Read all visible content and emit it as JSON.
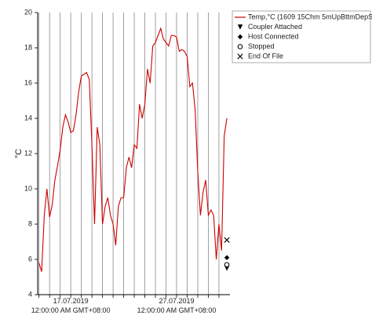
{
  "chart_data": {
    "type": "line",
    "ylabel": "°C",
    "ylim": [
      4,
      20
    ],
    "yticks": [
      4,
      6,
      8,
      10,
      12,
      14,
      16,
      18,
      20
    ],
    "xlim": [
      "2019-07-13T21:00",
      "2019-08-01T01:00"
    ],
    "xticks": [
      "2019-07-14T00:00",
      "2019-07-15T00:00",
      "2019-07-16T00:00",
      {
        "value": "2019-07-17T00:00",
        "label": "17.07.2019\n12:00:00 AM GMT+08:00"
      },
      "2019-07-18T00:00",
      "2019-07-19T00:00",
      "2019-07-20T00:00",
      "2019-07-21T00:00",
      "2019-07-22T00:00",
      "2019-07-23T00:00",
      "2019-07-24T00:00",
      "2019-07-25T00:00",
      "2019-07-26T00:00",
      {
        "value": "2019-07-27T00:00",
        "label": "27.07.2019\n12:00:00 AM GMT+08:00"
      },
      "2019-07-28T00:00",
      "2019-07-29T00:00",
      "2019-07-30T00:00",
      "2019-07-31T00:00"
    ],
    "grid": true,
    "legend": "top-right",
    "series": [
      {
        "name": "Temp,°C (1609 15Chm 5mUpBttmDepSt)",
        "color": "#cc0000",
        "marker": "line",
        "x": [
          "2019-07-14T00:00",
          "2019-07-14T06:00",
          "2019-07-14T12:00",
          "2019-07-14T18:00",
          "2019-07-15T00:00",
          "2019-07-15T06:00",
          "2019-07-15T12:00",
          "2019-07-15T18:00",
          "2019-07-16T00:00",
          "2019-07-16T06:00",
          "2019-07-16T12:00",
          "2019-07-16T18:00",
          "2019-07-17T00:00",
          "2019-07-17T06:00",
          "2019-07-17T12:00",
          "2019-07-17T18:00",
          "2019-07-18T00:00",
          "2019-07-18T06:00",
          "2019-07-18T12:00",
          "2019-07-18T18:00",
          "2019-07-19T00:00",
          "2019-07-19T06:00",
          "2019-07-19T12:00",
          "2019-07-19T18:00",
          "2019-07-20T00:00",
          "2019-07-20T06:00",
          "2019-07-20T12:00",
          "2019-07-20T18:00",
          "2019-07-21T00:00",
          "2019-07-21T06:00",
          "2019-07-21T12:00",
          "2019-07-21T18:00",
          "2019-07-22T00:00",
          "2019-07-22T06:00",
          "2019-07-22T12:00",
          "2019-07-22T18:00",
          "2019-07-23T00:00",
          "2019-07-23T06:00",
          "2019-07-23T12:00",
          "2019-07-23T18:00",
          "2019-07-24T00:00",
          "2019-07-24T06:00",
          "2019-07-24T12:00",
          "2019-07-24T18:00",
          "2019-07-25T00:00",
          "2019-07-25T06:00",
          "2019-07-25T12:00",
          "2019-07-25T18:00",
          "2019-07-26T00:00",
          "2019-07-26T06:00",
          "2019-07-26T12:00",
          "2019-07-26T18:00",
          "2019-07-27T00:00",
          "2019-07-27T06:00",
          "2019-07-27T12:00",
          "2019-07-27T18:00",
          "2019-07-28T00:00",
          "2019-07-28T06:00",
          "2019-07-28T12:00",
          "2019-07-28T18:00",
          "2019-07-29T00:00",
          "2019-07-29T06:00",
          "2019-07-29T12:00",
          "2019-07-29T18:00",
          "2019-07-30T00:00",
          "2019-07-30T06:00",
          "2019-07-30T12:00",
          "2019-07-30T18:00",
          "2019-07-31T00:00",
          "2019-07-31T06:00",
          "2019-07-31T12:00",
          "2019-07-31T18:00"
        ],
        "values": [
          5.8,
          5.3,
          8.5,
          10,
          8.4,
          9.1,
          10.5,
          11.3,
          12.2,
          13.5,
          14.2,
          13.8,
          13.2,
          13.3,
          14.2,
          15.5,
          16.4,
          16.5,
          16.6,
          16.2,
          12.5,
          8,
          13.5,
          12.5,
          8,
          9,
          9.5,
          8.5,
          8,
          6.8,
          9,
          9.5,
          9.5,
          11.2,
          11.8,
          11.2,
          12.5,
          12.3,
          14.8,
          14,
          14.8,
          16.8,
          16,
          18.1,
          18.3,
          18.7,
          19.1,
          18.5,
          18.3,
          18.1,
          18.7,
          18.7,
          18.6,
          17.8,
          17.9,
          17.8,
          17.5,
          15.8,
          16,
          14.5,
          11,
          8.5,
          9.8,
          10.5,
          8.5,
          8.8,
          8.5,
          6,
          8,
          6.5,
          13,
          14
        ]
      },
      {
        "name": "Coupler Attached",
        "color": "#000000",
        "marker": "triangle-down",
        "x": [
          "2019-07-31T18:00"
        ],
        "values": [
          5.5
        ]
      },
      {
        "name": "Host Connected",
        "color": "#000000",
        "marker": "diamond",
        "x": [
          "2019-07-31T18:00"
        ],
        "values": [
          6.1
        ]
      },
      {
        "name": "Stopped",
        "color": "#000000",
        "marker": "circle",
        "x": [
          "2019-07-31T18:00"
        ],
        "values": [
          5.7
        ]
      },
      {
        "name": "End Of File",
        "color": "#000000",
        "marker": "cross",
        "x": [
          "2019-07-31T18:00"
        ],
        "values": [
          7.1
        ]
      }
    ]
  }
}
